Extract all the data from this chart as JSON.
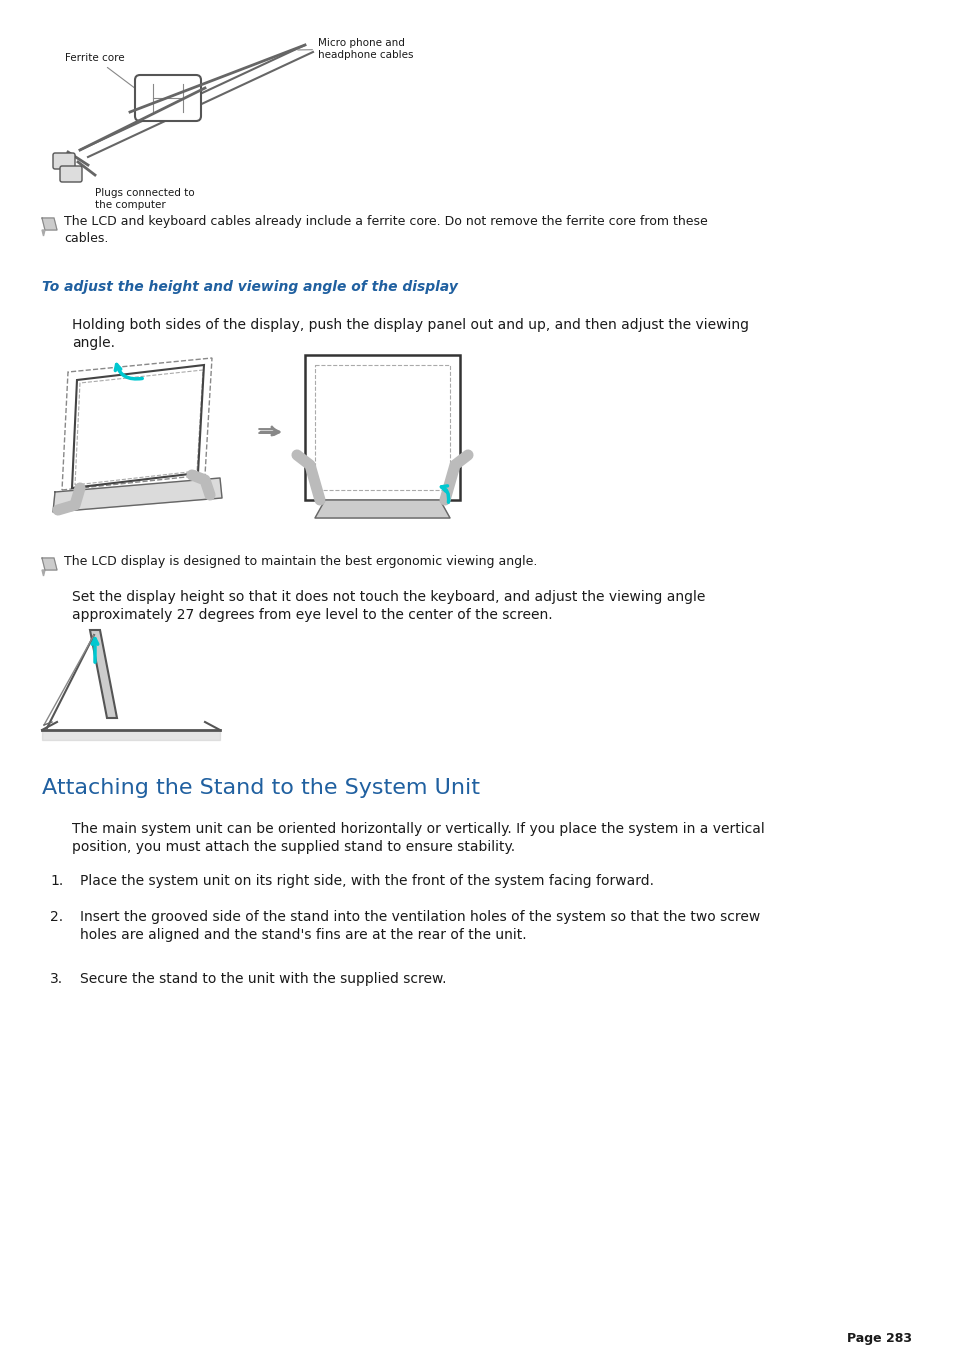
{
  "bg_color": "#ffffff",
  "page_width": 9.54,
  "page_height": 13.51,
  "body_color": "#1a1a1a",
  "heading_color": "#2060a0",
  "italic_heading": "To adjust the height and viewing angle of the display",
  "section_heading": "Attaching the Stand to the System Unit",
  "note1_text": "The LCD and keyboard cables already include a ferrite core. Do not remove the ferrite core from these\ncables.",
  "italic_body": "Holding both sides of the display, push the display panel out and up, and then adjust the viewing\nangle.",
  "note2_text": "The LCD display is designed to maintain the best ergonomic viewing angle.",
  "set_display_text": "Set the display height so that it does not touch the keyboard, and adjust the viewing angle\napproximately 27 degrees from eye level to the center of the screen.",
  "section_intro": "The main system unit can be oriented horizontally or vertically. If you place the system in a vertical\nposition, you must attach the supplied stand to ensure stability.",
  "list_items": [
    "Place the system unit on its right side, with the front of the system facing forward.",
    "Insert the grooved side of the stand into the ventilation holes of the system so that the two screw\nholes are aligned and the stand's fins are at the rear of the unit.",
    "Secure the stand to the unit with the supplied screw."
  ],
  "page_num": "Page 283",
  "ferrite_label1": "Ferrite core",
  "ferrite_label2": "Micro phone and\nheadphone cables",
  "ferrite_label3": "Plugs connected to\nthe computer",
  "dpi": 100
}
